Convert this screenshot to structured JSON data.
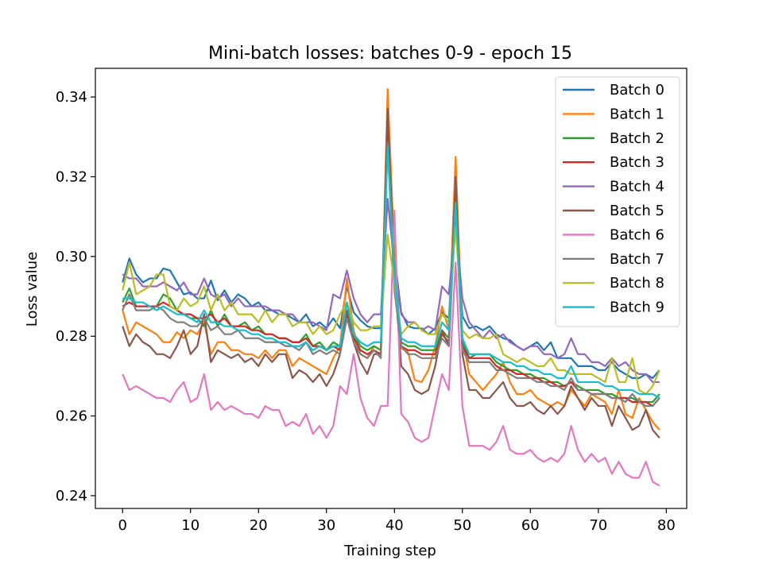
{
  "chart_data": {
    "type": "line",
    "title": "Mini-batch losses: batches 0-9 - epoch 15",
    "xlabel": "Training step",
    "ylabel": "Loss value",
    "xlim": [
      -4.0,
      83.0
    ],
    "ylim": [
      0.2368,
      0.3472
    ],
    "xticks": [
      0,
      10,
      20,
      30,
      40,
      50,
      60,
      70,
      80
    ],
    "xtick_labels": [
      "0",
      "10",
      "20",
      "30",
      "40",
      "50",
      "60",
      "70",
      "80"
    ],
    "yticks": [
      0.24,
      0.26,
      0.28,
      0.3,
      0.32,
      0.34
    ],
    "ytick_labels": [
      "0.24",
      "0.26",
      "0.28",
      "0.30",
      "0.32",
      "0.34"
    ],
    "grid": false,
    "legend_position": "top-right",
    "series": [
      {
        "name": "Batch 0",
        "color": "#1f77b4",
        "values": [
          0.2935,
          0.2995,
          0.2955,
          0.2935,
          0.2945,
          0.2945,
          0.297,
          0.2965,
          0.2935,
          0.2905,
          0.291,
          0.2895,
          0.2895,
          0.294,
          0.289,
          0.2915,
          0.2885,
          0.2905,
          0.2895,
          0.2875,
          0.2885,
          0.2865,
          0.2865,
          0.2855,
          0.2855,
          0.2845,
          0.2835,
          0.2855,
          0.2825,
          0.2835,
          0.282,
          0.2845,
          0.282,
          0.2925,
          0.286,
          0.284,
          0.2825,
          0.282,
          0.282,
          0.33,
          0.3,
          0.286,
          0.2825,
          0.282,
          0.282,
          0.2805,
          0.282,
          0.286,
          0.2845,
          0.313,
          0.285,
          0.282,
          0.2825,
          0.2815,
          0.2825,
          0.2805,
          0.2795,
          0.279,
          0.2775,
          0.2765,
          0.2775,
          0.2785,
          0.2765,
          0.2785,
          0.2745,
          0.2745,
          0.2745,
          0.2725,
          0.2725,
          0.2725,
          0.2715,
          0.2715,
          0.2735,
          0.2715,
          0.2705,
          0.2695,
          0.2695,
          0.2705,
          0.2695,
          0.2715
        ]
      },
      {
        "name": "Batch 1",
        "color": "#ff7f0e",
        "values": [
          0.2865,
          0.2805,
          0.2835,
          0.2825,
          0.2815,
          0.2805,
          0.2785,
          0.2785,
          0.281,
          0.2795,
          0.2815,
          0.2805,
          0.2835,
          0.2755,
          0.2785,
          0.2785,
          0.2765,
          0.2765,
          0.2755,
          0.2755,
          0.2745,
          0.2765,
          0.2745,
          0.2765,
          0.2765,
          0.2725,
          0.2745,
          0.2735,
          0.2725,
          0.2715,
          0.2705,
          0.2745,
          0.2775,
          0.2945,
          0.2815,
          0.2755,
          0.2745,
          0.2775,
          0.2765,
          0.342,
          0.3,
          0.277,
          0.276,
          0.269,
          0.2685,
          0.2715,
          0.2775,
          0.2875,
          0.2815,
          0.325,
          0.2795,
          0.2705,
          0.2685,
          0.2665,
          0.2685,
          0.2705,
          0.2735,
          0.2685,
          0.2655,
          0.2655,
          0.2665,
          0.2645,
          0.2635,
          0.2625,
          0.2635,
          0.2625,
          0.2665,
          0.2645,
          0.2625,
          0.2655,
          0.2645,
          0.2635,
          0.2605,
          0.2665,
          0.2605,
          0.2595,
          0.2645,
          0.2615,
          0.2585,
          0.2565
        ]
      },
      {
        "name": "Batch 2",
        "color": "#2ca02c",
        "values": [
          0.2885,
          0.292,
          0.2875,
          0.2875,
          0.2875,
          0.2875,
          0.2905,
          0.2895,
          0.2865,
          0.2855,
          0.2845,
          0.2845,
          0.2825,
          0.2865,
          0.2825,
          0.2855,
          0.2825,
          0.2825,
          0.2835,
          0.2815,
          0.2825,
          0.2805,
          0.2805,
          0.2795,
          0.2795,
          0.2785,
          0.2785,
          0.2805,
          0.2775,
          0.2785,
          0.2765,
          0.2785,
          0.2775,
          0.2865,
          0.2805,
          0.2775,
          0.2765,
          0.2775,
          0.2765,
          0.336,
          0.2945,
          0.2785,
          0.2775,
          0.2775,
          0.2765,
          0.2765,
          0.2765,
          0.2815,
          0.2795,
          0.316,
          0.2785,
          0.2745,
          0.2755,
          0.2755,
          0.2755,
          0.2735,
          0.2725,
          0.2715,
          0.2715,
          0.2705,
          0.2705,
          0.2695,
          0.2695,
          0.2685,
          0.2685,
          0.2675,
          0.2685,
          0.2675,
          0.2665,
          0.2665,
          0.2665,
          0.2655,
          0.2655,
          0.2645,
          0.2645,
          0.2645,
          0.2635,
          0.2635,
          0.2635,
          0.2655
        ]
      },
      {
        "name": "Batch 3",
        "color": "#d62728",
        "values": [
          0.2875,
          0.2885,
          0.2875,
          0.2875,
          0.2875,
          0.2875,
          0.2885,
          0.2875,
          0.2865,
          0.2855,
          0.2855,
          0.2845,
          0.2845,
          0.2855,
          0.2835,
          0.2845,
          0.2825,
          0.2825,
          0.2825,
          0.2815,
          0.2815,
          0.2805,
          0.2805,
          0.2795,
          0.2795,
          0.2785,
          0.2785,
          0.2795,
          0.2775,
          0.2775,
          0.2765,
          0.2775,
          0.2765,
          0.2855,
          0.2795,
          0.2765,
          0.2755,
          0.2765,
          0.2755,
          0.335,
          0.2935,
          0.2775,
          0.2765,
          0.2765,
          0.2755,
          0.2755,
          0.2755,
          0.2805,
          0.2785,
          0.3155,
          0.2775,
          0.2745,
          0.2745,
          0.2745,
          0.2745,
          0.2725,
          0.2715,
          0.2715,
          0.2705,
          0.2705,
          0.2695,
          0.2695,
          0.2685,
          0.2685,
          0.2675,
          0.2675,
          0.2685,
          0.2665,
          0.2665,
          0.2655,
          0.2655,
          0.2655,
          0.2645,
          0.2645,
          0.2645,
          0.2635,
          0.2635,
          0.2635,
          0.2625,
          0.2645
        ]
      },
      {
        "name": "Batch 4",
        "color": "#9467bd",
        "values": [
          0.2955,
          0.2945,
          0.2945,
          0.2925,
          0.2925,
          0.2925,
          0.2935,
          0.2925,
          0.2915,
          0.2935,
          0.2905,
          0.2905,
          0.2945,
          0.2905,
          0.2895,
          0.2905,
          0.2875,
          0.2895,
          0.2875,
          0.2875,
          0.2875,
          0.2875,
          0.2865,
          0.2865,
          0.2855,
          0.2855,
          0.2835,
          0.2835,
          0.2835,
          0.2825,
          0.2815,
          0.2905,
          0.2895,
          0.2965,
          0.2895,
          0.2855,
          0.2835,
          0.2855,
          0.2855,
          0.3145,
          0.2975,
          0.2855,
          0.2835,
          0.2835,
          0.2815,
          0.2825,
          0.2815,
          0.2925,
          0.2905,
          0.3085,
          0.2895,
          0.2835,
          0.2815,
          0.2795,
          0.2815,
          0.2795,
          0.2805,
          0.2785,
          0.2775,
          0.2765,
          0.2775,
          0.2775,
          0.2755,
          0.2755,
          0.2745,
          0.2755,
          0.2795,
          0.2755,
          0.2755,
          0.2735,
          0.2735,
          0.2725,
          0.2745,
          0.2725,
          0.2735,
          0.2715,
          0.2705,
          0.2705,
          0.2685,
          0.2685
        ]
      },
      {
        "name": "Batch 5",
        "color": "#8c564b",
        "values": [
          0.2825,
          0.2775,
          0.2805,
          0.2785,
          0.2775,
          0.2755,
          0.2755,
          0.2745,
          0.2775,
          0.2815,
          0.2755,
          0.2775,
          0.2855,
          0.2735,
          0.2765,
          0.2755,
          0.2745,
          0.2755,
          0.2735,
          0.2745,
          0.2725,
          0.2755,
          0.2735,
          0.2755,
          0.2755,
          0.2695,
          0.2715,
          0.2705,
          0.2685,
          0.2705,
          0.2675,
          0.2705,
          0.2755,
          0.2865,
          0.2785,
          0.2735,
          0.2705,
          0.2755,
          0.2755,
          0.337,
          0.295,
          0.2725,
          0.2705,
          0.2665,
          0.2655,
          0.2665,
          0.2725,
          0.2815,
          0.2775,
          0.32,
          0.2755,
          0.2665,
          0.2665,
          0.2645,
          0.2645,
          0.2665,
          0.2685,
          0.2645,
          0.2625,
          0.2625,
          0.2635,
          0.2615,
          0.2605,
          0.2625,
          0.2605,
          0.2625,
          0.2675,
          0.2645,
          0.2615,
          0.2645,
          0.2625,
          0.2625,
          0.2575,
          0.2625,
          0.2595,
          0.2565,
          0.2575,
          0.2615,
          0.2565,
          0.2545
        ]
      },
      {
        "name": "Batch 6",
        "color": "#e377c2",
        "values": [
          0.2705,
          0.2665,
          0.2675,
          0.2665,
          0.2655,
          0.2645,
          0.2645,
          0.2635,
          0.2665,
          0.2685,
          0.2635,
          0.2645,
          0.2705,
          0.2615,
          0.2635,
          0.2615,
          0.2625,
          0.2615,
          0.2605,
          0.2605,
          0.2595,
          0.2625,
          0.2615,
          0.2615,
          0.2575,
          0.2585,
          0.2575,
          0.2605,
          0.2555,
          0.2575,
          0.2545,
          0.2575,
          0.2675,
          0.2655,
          0.2755,
          0.2645,
          0.2595,
          0.2575,
          0.2625,
          0.2625,
          0.3115,
          0.2605,
          0.2585,
          0.2545,
          0.2535,
          0.2545,
          0.2625,
          0.2705,
          0.2665,
          0.2985,
          0.2625,
          0.2525,
          0.2525,
          0.2525,
          0.2515,
          0.2535,
          0.2575,
          0.2515,
          0.2505,
          0.2505,
          0.2515,
          0.2495,
          0.2485,
          0.2495,
          0.2485,
          0.2505,
          0.2575,
          0.2515,
          0.2485,
          0.2505,
          0.2485,
          0.2495,
          0.2455,
          0.2485,
          0.2455,
          0.2445,
          0.2445,
          0.2485,
          0.2435,
          0.2425
        ]
      },
      {
        "name": "Batch 7",
        "color": "#7f7f7f",
        "values": [
          0.2865,
          0.2905,
          0.2865,
          0.2865,
          0.2865,
          0.2875,
          0.2865,
          0.2845,
          0.2835,
          0.2835,
          0.2825,
          0.2825,
          0.2845,
          0.2815,
          0.2825,
          0.2805,
          0.2805,
          0.2815,
          0.2795,
          0.2795,
          0.2795,
          0.2785,
          0.2785,
          0.2785,
          0.2775,
          0.2775,
          0.2765,
          0.2785,
          0.2755,
          0.2765,
          0.2755,
          0.2765,
          0.2755,
          0.2845,
          0.2785,
          0.2755,
          0.2745,
          0.2765,
          0.2745,
          0.3285,
          0.2915,
          0.2775,
          0.2755,
          0.2755,
          0.2745,
          0.2745,
          0.2745,
          0.2795,
          0.2775,
          0.3115,
          0.2765,
          0.2735,
          0.2735,
          0.2735,
          0.2735,
          0.2715,
          0.2715,
          0.2705,
          0.2695,
          0.2695,
          0.2695,
          0.2685,
          0.2685,
          0.2675,
          0.2675,
          0.2665,
          0.2695,
          0.2665,
          0.2665,
          0.2655,
          0.2655,
          0.2655,
          0.2645,
          0.2645,
          0.2635,
          0.2655,
          0.2635,
          0.2625,
          0.2625,
          0.2645
        ]
      },
      {
        "name": "Batch 8",
        "color": "#bcbd22",
        "values": [
          0.2915,
          0.2985,
          0.2905,
          0.2915,
          0.2925,
          0.2955,
          0.2955,
          0.2875,
          0.2865,
          0.2895,
          0.2875,
          0.2885,
          0.2925,
          0.2865,
          0.2905,
          0.2865,
          0.2885,
          0.2855,
          0.2855,
          0.2855,
          0.2835,
          0.2865,
          0.2835,
          0.2855,
          0.2855,
          0.2825,
          0.2835,
          0.2835,
          0.2805,
          0.2825,
          0.2805,
          0.2815,
          0.2855,
          0.2885,
          0.2835,
          0.2815,
          0.2815,
          0.2825,
          0.2825,
          0.3055,
          0.2935,
          0.2805,
          0.2825,
          0.2835,
          0.2815,
          0.2805,
          0.2805,
          0.2855,
          0.2835,
          0.3075,
          0.2815,
          0.2795,
          0.2805,
          0.2795,
          0.2795,
          0.2805,
          0.2755,
          0.2745,
          0.2735,
          0.2745,
          0.2735,
          0.2725,
          0.2725,
          0.2745,
          0.2715,
          0.2715,
          0.2705,
          0.2705,
          0.2705,
          0.2705,
          0.2695,
          0.2685,
          0.2745,
          0.2685,
          0.2685,
          0.2745,
          0.2665,
          0.2655,
          0.2675,
          0.2715
        ]
      },
      {
        "name": "Batch 9",
        "color": "#17becf",
        "values": [
          0.2895,
          0.2895,
          0.2885,
          0.2885,
          0.2875,
          0.2865,
          0.2875,
          0.2865,
          0.2855,
          0.2855,
          0.2845,
          0.2835,
          0.2865,
          0.2835,
          0.2835,
          0.2825,
          0.2825,
          0.2815,
          0.2815,
          0.2805,
          0.2805,
          0.2795,
          0.2795,
          0.2785,
          0.2785,
          0.2775,
          0.2775,
          0.2785,
          0.2765,
          0.2775,
          0.2765,
          0.2775,
          0.2775,
          0.2885,
          0.2805,
          0.2785,
          0.2775,
          0.2785,
          0.2785,
          0.3275,
          0.2955,
          0.2795,
          0.2785,
          0.2785,
          0.2775,
          0.2775,
          0.2775,
          0.2835,
          0.2815,
          0.3135,
          0.2795,
          0.2755,
          0.2755,
          0.2755,
          0.2755,
          0.2745,
          0.2735,
          0.2735,
          0.2725,
          0.2725,
          0.2715,
          0.2715,
          0.2705,
          0.2705,
          0.2695,
          0.2695,
          0.2725,
          0.2685,
          0.2685,
          0.2685,
          0.2685,
          0.2675,
          0.2675,
          0.2665,
          0.2665,
          0.2665,
          0.2655,
          0.2655,
          0.2655,
          0.2645
        ]
      }
    ]
  }
}
